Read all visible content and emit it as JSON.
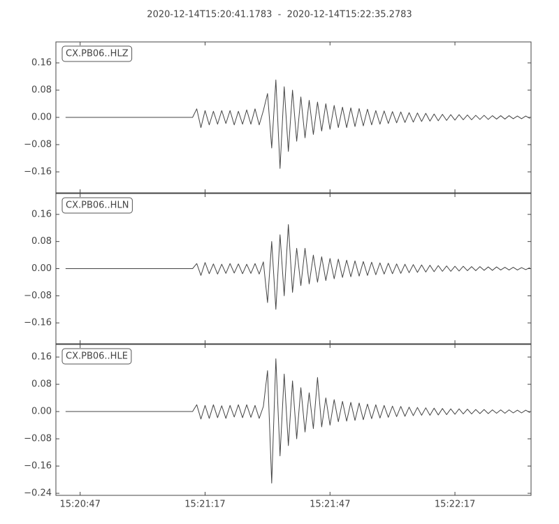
{
  "title": "2020-12-14T15:20:41.1783  -  2020-12-14T15:22:35.2783",
  "chart_data": [
    {
      "type": "line",
      "label": "CX.PB06..HLZ",
      "color": "#444444",
      "ylim": [
        -0.2215,
        0.2215
      ],
      "yticks": [
        0.16,
        0.08,
        {
          "value": 0,
          "label": "0.00"
        },
        {
          "value": -0.08,
          "label": "−0.08"
        },
        {
          "value": -0.16,
          "label": "−0.16"
        }
      ],
      "x": [
        43.5,
        74,
        75,
        76,
        77,
        78,
        79,
        80,
        81,
        82,
        83,
        84,
        85,
        86,
        87,
        88,
        89,
        90,
        91,
        92,
        93,
        94,
        95,
        96,
        97,
        98,
        99,
        100,
        101,
        102,
        103,
        104,
        105,
        106,
        107,
        108,
        109,
        110,
        111,
        112,
        113,
        114,
        115,
        116,
        117,
        118,
        119,
        120,
        121,
        122,
        123,
        124,
        125,
        126,
        127,
        128,
        129,
        130,
        131,
        132,
        133,
        134,
        135,
        136,
        137,
        138,
        139,
        140,
        141,
        142,
        143,
        144,
        145,
        146,
        147,
        148,
        149,
        150,
        151,
        152,
        153,
        154,
        155
      ],
      "values": [
        0,
        0,
        0.025,
        -0.03,
        0.02,
        -0.022,
        0.018,
        -0.02,
        0.02,
        -0.018,
        0.02,
        -0.022,
        0.018,
        -0.02,
        0.022,
        -0.02,
        0.025,
        -0.022,
        0.02,
        0.07,
        -0.09,
        0.11,
        -0.15,
        0.09,
        -0.1,
        0.08,
        -0.07,
        0.06,
        -0.06,
        0.05,
        -0.05,
        0.045,
        -0.04,
        0.04,
        -0.035,
        0.035,
        -0.03,
        0.03,
        -0.03,
        0.028,
        -0.027,
        0.026,
        -0.025,
        0.024,
        -0.022,
        0.02,
        -0.02,
        0.019,
        -0.018,
        0.017,
        -0.016,
        0.016,
        -0.015,
        0.014,
        -0.014,
        0.013,
        -0.012,
        0.012,
        -0.011,
        0.01,
        -0.01,
        0.009,
        -0.009,
        0.008,
        -0.008,
        0.008,
        -0.007,
        0.007,
        -0.007,
        0.006,
        -0.006,
        0.006,
        -0.006,
        0.005,
        -0.005,
        0.005,
        -0.005,
        0.005,
        -0.004,
        0.004,
        -0.004,
        0.004,
        -0.003
      ]
    },
    {
      "type": "line",
      "label": "CX.PB06..HLN",
      "color": "#444444",
      "ylim": [
        -0.2215,
        0.2215
      ],
      "yticks": [
        0.16,
        0.08,
        {
          "value": 0,
          "label": "0.00"
        },
        {
          "value": -0.08,
          "label": "−0.08"
        },
        {
          "value": -0.16,
          "label": "−0.16"
        }
      ],
      "x": [
        43.5,
        74,
        75,
        76,
        77,
        78,
        79,
        80,
        81,
        82,
        83,
        84,
        85,
        86,
        87,
        88,
        89,
        90,
        91,
        92,
        93,
        94,
        95,
        96,
        97,
        98,
        99,
        100,
        101,
        102,
        103,
        104,
        105,
        106,
        107,
        108,
        109,
        110,
        111,
        112,
        113,
        114,
        115,
        116,
        117,
        118,
        119,
        120,
        121,
        122,
        123,
        124,
        125,
        126,
        127,
        128,
        129,
        130,
        131,
        132,
        133,
        134,
        135,
        136,
        137,
        138,
        139,
        140,
        141,
        142,
        143,
        144,
        145,
        146,
        147,
        148,
        149,
        150,
        151,
        152,
        153,
        154,
        155
      ],
      "values": [
        0,
        0,
        0.015,
        -0.02,
        0.018,
        -0.015,
        0.014,
        -0.016,
        0.013,
        -0.014,
        0.015,
        -0.013,
        0.014,
        -0.015,
        0.013,
        -0.014,
        0.015,
        -0.016,
        0.02,
        -0.1,
        0.08,
        -0.12,
        0.1,
        -0.08,
        0.13,
        -0.07,
        0.06,
        -0.05,
        0.06,
        -0.045,
        0.04,
        -0.04,
        0.035,
        -0.035,
        0.03,
        -0.03,
        0.028,
        -0.026,
        0.025,
        -0.024,
        0.023,
        -0.022,
        0.021,
        -0.02,
        0.019,
        -0.018,
        0.017,
        -0.016,
        0.016,
        -0.015,
        0.014,
        -0.014,
        0.013,
        -0.012,
        0.012,
        -0.011,
        0.011,
        -0.01,
        0.01,
        -0.009,
        0.009,
        -0.008,
        0.008,
        -0.008,
        0.007,
        -0.007,
        0.007,
        -0.006,
        0.006,
        -0.006,
        0.006,
        -0.005,
        0.005,
        -0.005,
        0.005,
        -0.004,
        0.004,
        -0.004,
        0.004,
        -0.004,
        0.003,
        -0.003,
        0.003
      ]
    },
    {
      "type": "line",
      "label": "CX.PB06..HLE",
      "color": "#444444",
      "ylim": [
        -0.246,
        0.197
      ],
      "yticks": [
        0.16,
        0.08,
        {
          "value": 0,
          "label": "0.00"
        },
        {
          "value": -0.08,
          "label": "−0.08"
        },
        {
          "value": -0.16,
          "label": "−0.16"
        },
        {
          "value": -0.24,
          "label": "−0.24"
        }
      ],
      "xlim": [
        41.1783,
        155.2783
      ],
      "xticks": [
        {
          "value": 47,
          "label": "15:20:47"
        },
        {
          "value": 77,
          "label": "15:21:17"
        },
        {
          "value": 107,
          "label": "15:21:47"
        },
        {
          "value": 137,
          "label": "15:22:17"
        }
      ],
      "x": [
        43.5,
        74,
        75,
        76,
        77,
        78,
        79,
        80,
        81,
        82,
        83,
        84,
        85,
        86,
        87,
        88,
        89,
        90,
        91,
        92,
        93,
        94,
        95,
        96,
        97,
        98,
        99,
        100,
        101,
        102,
        103,
        104,
        105,
        106,
        107,
        108,
        109,
        110,
        111,
        112,
        113,
        114,
        115,
        116,
        117,
        118,
        119,
        120,
        121,
        122,
        123,
        124,
        125,
        126,
        127,
        128,
        129,
        130,
        131,
        132,
        133,
        134,
        135,
        136,
        137,
        138,
        139,
        140,
        141,
        142,
        143,
        144,
        145,
        146,
        147,
        148,
        149,
        150,
        151,
        152,
        153,
        154,
        155
      ],
      "values": [
        0,
        0,
        0.02,
        -0.022,
        0.018,
        -0.02,
        0.02,
        -0.018,
        0.017,
        -0.02,
        0.018,
        -0.016,
        0.02,
        -0.018,
        0.02,
        -0.017,
        0.018,
        -0.02,
        0.015,
        0.12,
        -0.21,
        0.155,
        -0.13,
        0.11,
        -0.1,
        0.09,
        -0.08,
        0.07,
        -0.06,
        0.055,
        -0.05,
        0.1,
        -0.045,
        0.04,
        -0.04,
        0.035,
        -0.03,
        0.03,
        -0.028,
        0.027,
        -0.026,
        0.025,
        -0.024,
        0.022,
        -0.021,
        0.02,
        -0.019,
        0.018,
        -0.017,
        0.016,
        -0.015,
        0.015,
        -0.014,
        0.013,
        -0.012,
        0.012,
        -0.011,
        0.011,
        -0.011,
        0.01,
        -0.01,
        0.009,
        -0.009,
        0.008,
        -0.008,
        0.008,
        -0.007,
        0.007,
        -0.007,
        0.006,
        -0.006,
        0.006,
        -0.006,
        0.005,
        -0.005,
        0.005,
        -0.005,
        0.005,
        -0.004,
        0.004,
        -0.004,
        0.004,
        -0.003
      ]
    }
  ]
}
